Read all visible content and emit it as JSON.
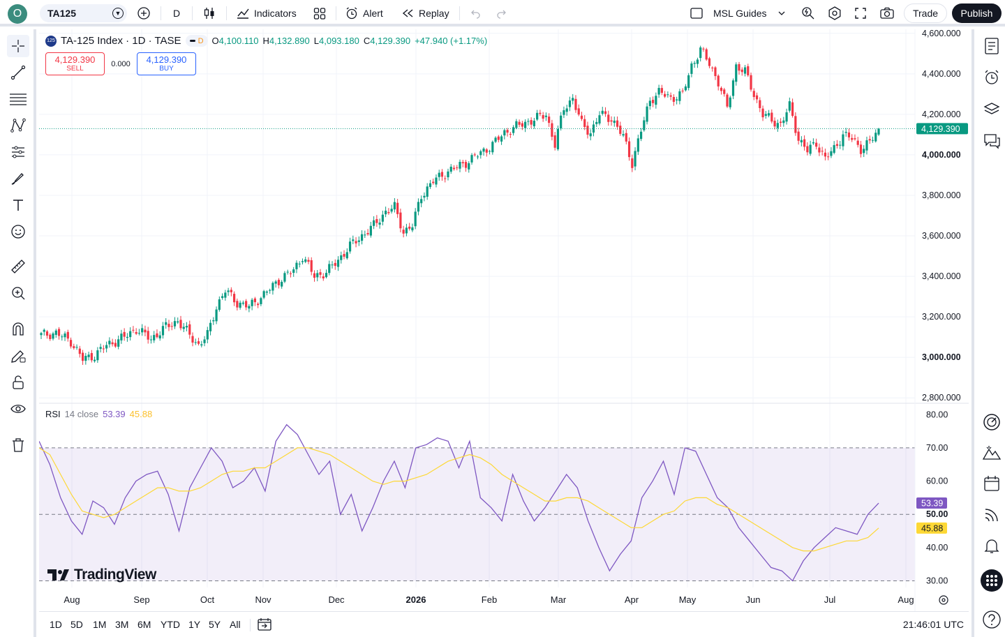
{
  "header": {
    "avatar_letter": "O",
    "symbol": "TA125",
    "interval": "D",
    "indicators_label": "Indicators",
    "alert_label": "Alert",
    "replay_label": "Replay",
    "layout_name": "MSL Guides",
    "trade_label": "Trade",
    "publish_label": "Publish"
  },
  "legend": {
    "badge": "125",
    "title": "TA-125 Index · 1D · TASE",
    "pill_label": "D",
    "o_key": "O",
    "o_val": "4,100.110",
    "h_key": "H",
    "h_val": "4,132.890",
    "l_key": "L",
    "l_val": "4,093.180",
    "c_key": "C",
    "c_val": "4,129.390",
    "change": "+47.940 (+1.17%)"
  },
  "trade_buttons": {
    "sell_price": "4,129.390",
    "sell_label": "SELL",
    "spread": "0.000",
    "buy_price": "4,129.390",
    "buy_label": "BUY"
  },
  "rsi_legend": {
    "name": "RSI",
    "params": "14 close",
    "rsi_value": "53.39",
    "ma_value": "45.88"
  },
  "price_axis": {
    "ticks": [
      "4,600.000",
      "4,400.000",
      "4,200.000",
      "4,000.000",
      "3,800.000",
      "3,600.000",
      "3,400.000",
      "3,200.000",
      "3,000.000",
      "2,800.000"
    ],
    "tick_values": [
      4600,
      4400,
      4200,
      4000,
      3800,
      3600,
      3400,
      3200,
      3000,
      2800
    ],
    "last_label": "4,129.390",
    "last_value": 4129.39
  },
  "rsi_axis": {
    "ticks": [
      "80.00",
      "70.00",
      "60.00",
      "50.00",
      "40.00",
      "30.00"
    ],
    "tick_values": [
      80,
      70,
      60,
      50,
      40,
      30
    ],
    "rsi_label": "53.39",
    "ma_label": "45.88"
  },
  "time_axis": {
    "labels": [
      "Aug",
      "Sep",
      "Oct",
      "Nov",
      "Dec",
      "2026",
      "Feb",
      "Mar",
      "Apr",
      "May",
      "Jun",
      "Jul",
      "Aug"
    ]
  },
  "watermark": "TradingView",
  "ranges": [
    "1D",
    "5D",
    "1M",
    "3M",
    "6M",
    "YTD",
    "1Y",
    "5Y",
    "All"
  ],
  "clock": "21:46:01 UTC",
  "colors": {
    "up": "#089981",
    "down": "#f23645",
    "rsi": "#7e57c2",
    "rsi_ma": "#fdd835",
    "rsi_band": "#7e57c2",
    "accent": "#2962ff"
  },
  "chart_data": [
    {
      "type": "candlestick",
      "title": "TA-125 Index · 1D · TASE",
      "ylim": [
        2780,
        4620
      ],
      "x_period": [
        "2025-07-21",
        "2026-07-22"
      ],
      "close_anchors": [
        [
          0,
          3110
        ],
        [
          5,
          3120
        ],
        [
          10,
          3080
        ],
        [
          14,
          2990
        ],
        [
          18,
          3010
        ],
        [
          22,
          3060
        ],
        [
          28,
          3100
        ],
        [
          32,
          3140
        ],
        [
          37,
          3090
        ],
        [
          42,
          3150
        ],
        [
          46,
          3180
        ],
        [
          50,
          3110
        ],
        [
          53,
          3060
        ],
        [
          56,
          3110
        ],
        [
          59,
          3250
        ],
        [
          62,
          3330
        ],
        [
          66,
          3270
        ],
        [
          70,
          3250
        ],
        [
          75,
          3310
        ],
        [
          80,
          3380
        ],
        [
          85,
          3430
        ],
        [
          88,
          3500
        ],
        [
          92,
          3400
        ],
        [
          96,
          3420
        ],
        [
          100,
          3480
        ],
        [
          104,
          3550
        ],
        [
          108,
          3600
        ],
        [
          112,
          3650
        ],
        [
          116,
          3720
        ],
        [
          119,
          3740
        ],
        [
          122,
          3620
        ],
        [
          125,
          3650
        ],
        [
          128,
          3800
        ],
        [
          132,
          3870
        ],
        [
          136,
          3910
        ],
        [
          140,
          3940
        ],
        [
          144,
          3970
        ],
        [
          148,
          4010
        ],
        [
          152,
          4050
        ],
        [
          156,
          4110
        ],
        [
          160,
          4140
        ],
        [
          165,
          4170
        ],
        [
          170,
          4200
        ],
        [
          173,
          4050
        ],
        [
          176,
          4230
        ],
        [
          179,
          4280
        ],
        [
          182,
          4150
        ],
        [
          185,
          4110
        ],
        [
          188,
          4200
        ],
        [
          192,
          4180
        ],
        [
          196,
          4090
        ],
        [
          199,
          3960
        ],
        [
          202,
          4120
        ],
        [
          205,
          4270
        ],
        [
          208,
          4310
        ],
        [
          212,
          4280
        ],
        [
          216,
          4300
        ],
        [
          219,
          4440
        ],
        [
          222,
          4520
        ],
        [
          225,
          4450
        ],
        [
          228,
          4360
        ],
        [
          231,
          4230
        ],
        [
          234,
          4440
        ],
        [
          237,
          4410
        ],
        [
          240,
          4300
        ],
        [
          243,
          4200
        ],
        [
          246,
          4170
        ],
        [
          249,
          4150
        ],
        [
          252,
          4240
        ],
        [
          255,
          4080
        ],
        [
          258,
          4020
        ],
        [
          261,
          4060
        ],
        [
          264,
          3980
        ],
        [
          267,
          4030
        ],
        [
          270,
          4100
        ],
        [
          273,
          4080
        ],
        [
          276,
          4030
        ],
        [
          279,
          4060
        ],
        [
          282,
          4129
        ]
      ],
      "last": {
        "open": 4100.11,
        "high": 4132.89,
        "low": 4093.18,
        "close": 4129.39,
        "change": 47.94,
        "change_pct": 1.17
      }
    },
    {
      "type": "line",
      "title": "RSI 14 close",
      "ylim": [
        28,
        83
      ],
      "bands": [
        30,
        50,
        70
      ],
      "series": [
        {
          "name": "RSI",
          "values": [
            72,
            65,
            55,
            48,
            44,
            54,
            52,
            47,
            55,
            60,
            62,
            63,
            56,
            45,
            58,
            64,
            70,
            66,
            58,
            60,
            64,
            57,
            72,
            77,
            74,
            68,
            62,
            66,
            50,
            56,
            45,
            52,
            60,
            66,
            58,
            70,
            71,
            73,
            72,
            64,
            72,
            55,
            52,
            48,
            62,
            54,
            48,
            52,
            57,
            62,
            58,
            48,
            40,
            33,
            38,
            42,
            55,
            60,
            66,
            56,
            70,
            69,
            62,
            55,
            52,
            46,
            42,
            38,
            34,
            33,
            30,
            36,
            40,
            43,
            46,
            45,
            44,
            50,
            53.39
          ]
        },
        {
          "name": "RSI MA",
          "values": [
            70,
            68,
            62,
            56,
            51,
            50,
            49,
            50,
            52,
            54,
            56,
            58,
            58,
            57,
            57,
            58,
            60,
            62,
            63,
            63,
            64,
            64,
            66,
            68,
            70,
            70,
            69,
            68,
            66,
            64,
            62,
            60,
            59,
            60,
            60,
            61,
            62,
            64,
            66,
            67,
            68,
            67,
            65,
            62,
            60,
            58,
            56,
            54,
            54,
            55,
            55,
            54,
            52,
            50,
            48,
            46,
            46,
            48,
            50,
            51,
            54,
            55,
            55,
            53,
            52,
            50,
            48,
            46,
            44,
            42,
            40,
            39,
            39,
            40,
            41,
            42,
            42,
            43,
            45.88
          ]
        }
      ]
    }
  ]
}
